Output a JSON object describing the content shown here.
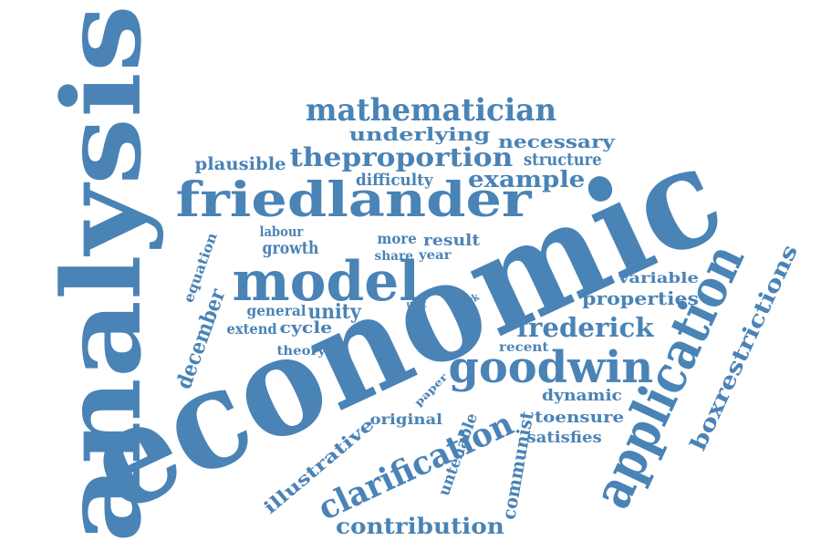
{
  "color": "#4a83b6",
  "words": [
    {
      "text": "economic"
    },
    {
      "text": "analysis"
    },
    {
      "text": "friedlander"
    },
    {
      "text": "model"
    },
    {
      "text": "goodwin"
    },
    {
      "text": "application"
    },
    {
      "text": "mathematician"
    },
    {
      "text": "clarification"
    },
    {
      "text": "boxrestrictions"
    },
    {
      "text": "frederick"
    },
    {
      "text": "theproportion"
    },
    {
      "text": "example"
    },
    {
      "text": "december"
    },
    {
      "text": "contribution"
    },
    {
      "text": "properties"
    },
    {
      "text": "underlying"
    },
    {
      "text": "necessary"
    },
    {
      "text": "illustrative"
    },
    {
      "text": "communist"
    },
    {
      "text": "growth"
    },
    {
      "text": "unity"
    },
    {
      "text": "plausible"
    },
    {
      "text": "structure"
    },
    {
      "text": "difficulty"
    },
    {
      "text": "general"
    },
    {
      "text": "extend"
    },
    {
      "text": "cycle"
    },
    {
      "text": "dynamic"
    },
    {
      "text": "toensure"
    },
    {
      "text": "satisfies"
    },
    {
      "text": "original"
    },
    {
      "text": "untenable"
    },
    {
      "text": "variable"
    },
    {
      "text": "result"
    },
    {
      "text": "more"
    },
    {
      "text": "labour"
    },
    {
      "text": "equation"
    },
    {
      "text": "theory"
    },
    {
      "text": "recent"
    },
    {
      "text": "share"
    },
    {
      "text": "year"
    },
    {
      "text": "paper"
    },
    {
      "text": "unit"
    },
    {
      "text": "work"
    }
  ]
}
